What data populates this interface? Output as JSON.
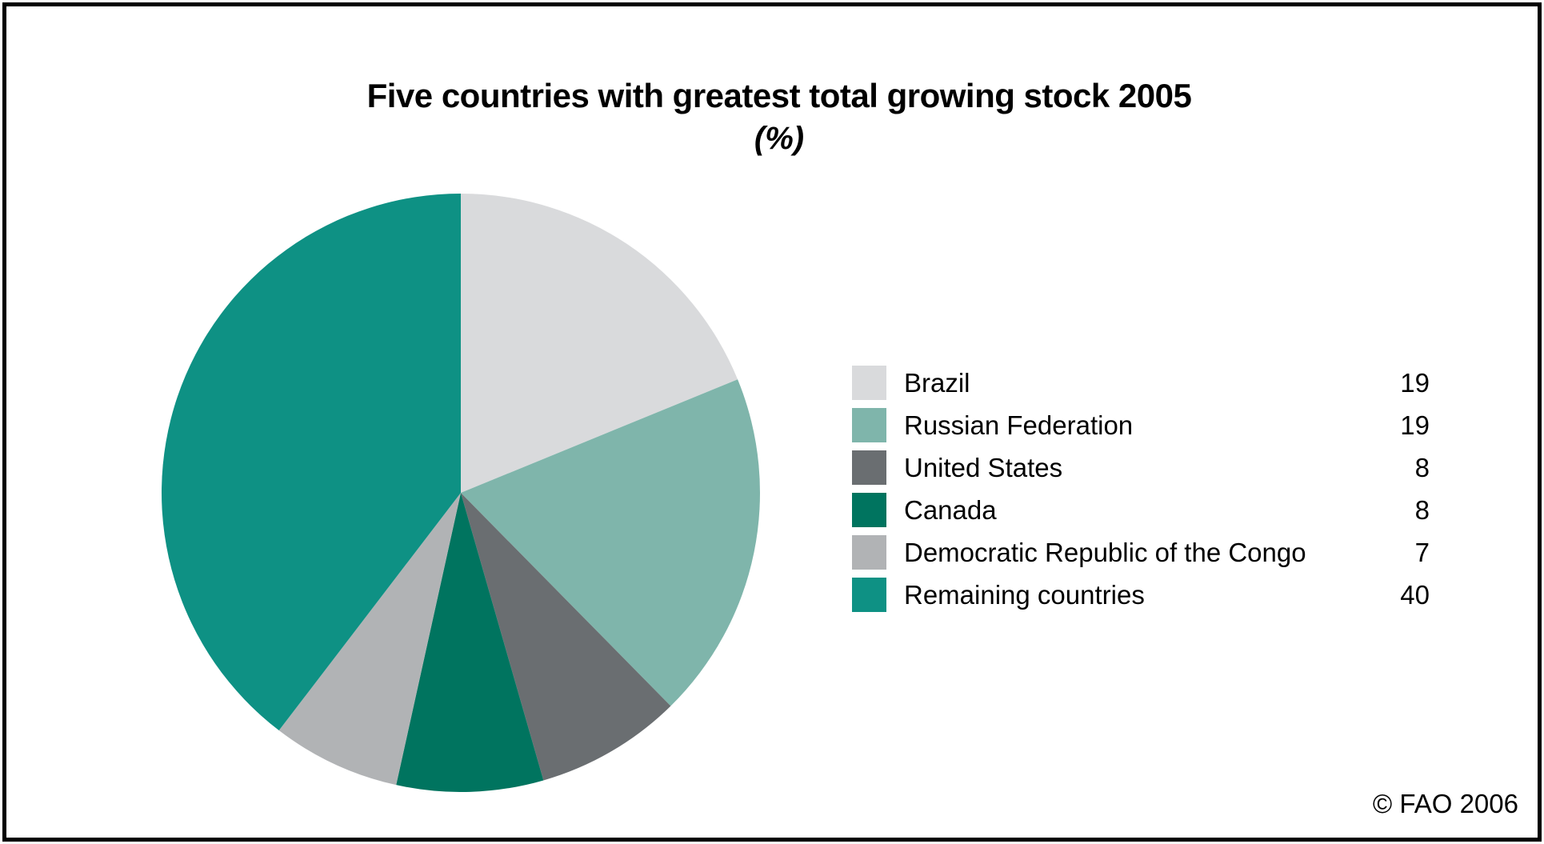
{
  "footer": {
    "credit": "© FAO 2006"
  },
  "chart_data": {
    "type": "pie",
    "title": "Five countries with greatest total growing stock 2005",
    "subtitle": "(%)",
    "unit": "%",
    "start_angle": "12 o'clock",
    "direction": "clockwise",
    "legend_position": "right",
    "items": [
      {
        "label": "Brazil",
        "value": 19,
        "color": "#d9dadc"
      },
      {
        "label": "Russian Federation",
        "value": 19,
        "color": "#7fb5ab"
      },
      {
        "label": "United States",
        "value": 8,
        "color": "#6a6e71"
      },
      {
        "label": "Canada",
        "value": 8,
        "color": "#00745f"
      },
      {
        "label": "Democratic Republic of the Congo",
        "value": 7,
        "color": "#b1b3b5"
      },
      {
        "label": "Remaining countries",
        "value": 40,
        "color": "#0e9184"
      }
    ]
  }
}
